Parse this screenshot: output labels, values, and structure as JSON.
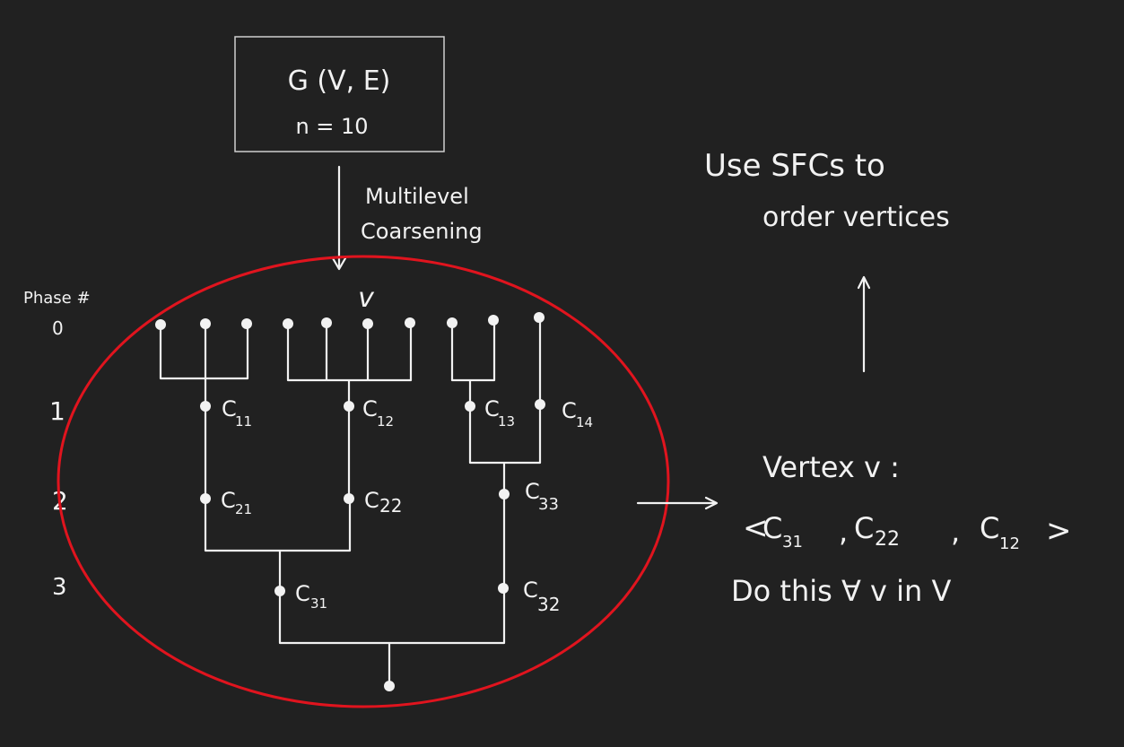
{
  "graph_box": {
    "line1": "G (V, E)",
    "line2": "n = 10"
  },
  "arrow_label": {
    "line1": "Multilevel",
    "line2": "Coarsening"
  },
  "phase_header": "Phase #",
  "phases": [
    "0",
    "1",
    "2",
    "3"
  ],
  "vertex_set_label": "v",
  "clusters": {
    "c11": {
      "main": "C",
      "sub": "11"
    },
    "c12": {
      "main": "C",
      "sub": "12"
    },
    "c13": {
      "main": "C",
      "sub": "13"
    },
    "c14": {
      "main": "C",
      "sub": "14"
    },
    "c21": {
      "main": "C",
      "sub": "21"
    },
    "c22": {
      "main": "C",
      "sub": "22"
    },
    "c33": {
      "main": "C",
      "sub": "33"
    },
    "c31": {
      "main": "C",
      "sub": "31"
    },
    "c32": {
      "main": "C",
      "sub": "32"
    }
  },
  "right_notes": {
    "top_line1": "Use SFCs to",
    "top_line2": "order vertices",
    "vertex_title": "Vertex v :",
    "tuple": {
      "c1": "C",
      "s1": "31",
      "c2": "C",
      "s2": "22",
      "c3": "C",
      "s3": "12"
    },
    "footer": "Do this ∀ v in V"
  },
  "colors": {
    "background": "#212121",
    "ink": "#f2f2f2",
    "ellipse": "#e0141e"
  }
}
